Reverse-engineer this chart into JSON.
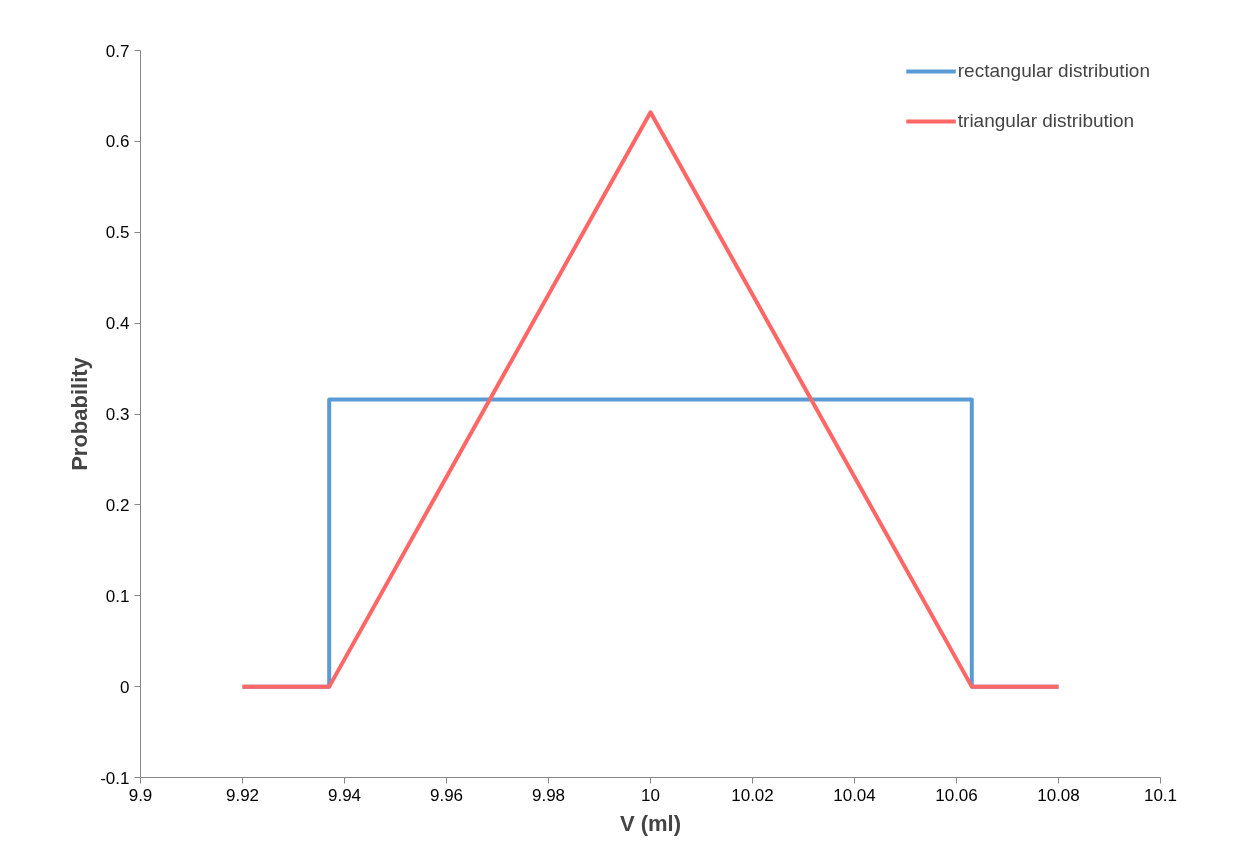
{
  "chart_data": {
    "type": "line",
    "xlabel": "V (ml)",
    "ylabel": "Probability",
    "xlim": [
      9.9,
      10.1
    ],
    "ylim": [
      -0.1,
      0.7
    ],
    "xticks": [
      9.9,
      9.92,
      9.94,
      9.96,
      9.98,
      10,
      10.02,
      10.04,
      10.06,
      10.08,
      10.1
    ],
    "yticks": [
      -0.1,
      0,
      0.1,
      0.2,
      0.3,
      0.4,
      0.5,
      0.6,
      0.7
    ],
    "grid": false,
    "legend": "top right",
    "marker": "none",
    "line_style": "solid",
    "series": [
      {
        "name": "rectangular distribution",
        "color": "#5b9bd5",
        "x": [
          9.92,
          9.937,
          9.937,
          10.063,
          10.063,
          10.08
        ],
        "values": [
          0,
          0,
          0.316,
          0.316,
          0,
          0
        ]
      },
      {
        "name": "triangular distribution",
        "color": "#ff6666",
        "x": [
          9.92,
          9.937,
          10,
          10.063,
          10.08
        ],
        "values": [
          0,
          0,
          0.632,
          0,
          0
        ]
      }
    ]
  }
}
